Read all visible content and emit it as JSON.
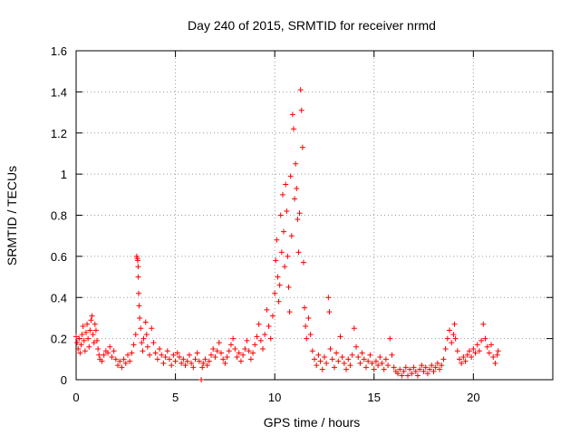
{
  "chart_data": {
    "type": "scatter",
    "title": "Day 240 of 2015, SRMTID for receiver nrmd",
    "xlabel": "GPS time / hours",
    "ylabel": "SRMTID / TECUs",
    "xlim": [
      0,
      24
    ],
    "ylim": [
      0,
      1.6
    ],
    "x_ticks": [
      0,
      5,
      10,
      15,
      20
    ],
    "x_tick_labels": [
      "0",
      "5",
      "10",
      "15",
      "20"
    ],
    "y_ticks": [
      0,
      0.2,
      0.4,
      0.6,
      0.8,
      1,
      1.2,
      1.4,
      1.6
    ],
    "y_tick_labels": [
      "0",
      "0.2",
      "0.4",
      "0.6",
      "0.8",
      "1",
      "1.2",
      "1.4",
      "1.6"
    ],
    "grid": true,
    "marker": "plus",
    "color": "#ff0000",
    "series": [
      {
        "name": "SRMTID",
        "points": [
          [
            0.0,
            0.21
          ],
          [
            0.05,
            0.18
          ],
          [
            0.1,
            0.15
          ],
          [
            0.15,
            0.2
          ],
          [
            0.2,
            0.13
          ],
          [
            0.25,
            0.17
          ],
          [
            0.3,
            0.22
          ],
          [
            0.35,
            0.26
          ],
          [
            0.4,
            0.19
          ],
          [
            0.45,
            0.14
          ],
          [
            0.5,
            0.23
          ],
          [
            0.55,
            0.27
          ],
          [
            0.6,
            0.2
          ],
          [
            0.65,
            0.16
          ],
          [
            0.7,
            0.24
          ],
          [
            0.75,
            0.29
          ],
          [
            0.8,
            0.31
          ],
          [
            0.85,
            0.22
          ],
          [
            0.9,
            0.18
          ],
          [
            0.95,
            0.27
          ],
          [
            1.0,
            0.24
          ],
          [
            1.05,
            0.19
          ],
          [
            1.1,
            0.15
          ],
          [
            1.15,
            0.12
          ],
          [
            1.2,
            0.1
          ],
          [
            1.3,
            0.09
          ],
          [
            1.4,
            0.12
          ],
          [
            1.5,
            0.14
          ],
          [
            1.6,
            0.13
          ],
          [
            1.7,
            0.16
          ],
          [
            1.8,
            0.11
          ],
          [
            1.9,
            0.14
          ],
          [
            2.0,
            0.1
          ],
          [
            2.1,
            0.07
          ],
          [
            2.2,
            0.09
          ],
          [
            2.3,
            0.06
          ],
          [
            2.4,
            0.1
          ],
          [
            2.5,
            0.08
          ],
          [
            2.6,
            0.12
          ],
          [
            2.7,
            0.09
          ],
          [
            2.8,
            0.13
          ],
          [
            2.9,
            0.17
          ],
          [
            3.0,
            0.22
          ],
          [
            3.05,
            0.6
          ],
          [
            3.08,
            0.59
          ],
          [
            3.1,
            0.58
          ],
          [
            3.12,
            0.55
          ],
          [
            3.13,
            0.5
          ],
          [
            3.15,
            0.42
          ],
          [
            3.17,
            0.36
          ],
          [
            3.2,
            0.3
          ],
          [
            3.25,
            0.25
          ],
          [
            3.3,
            0.18
          ],
          [
            3.35,
            0.14
          ],
          [
            3.4,
            0.2
          ],
          [
            3.5,
            0.28
          ],
          [
            3.55,
            0.22
          ],
          [
            3.6,
            0.16
          ],
          [
            3.7,
            0.12
          ],
          [
            3.8,
            0.25
          ],
          [
            3.9,
            0.18
          ],
          [
            4.0,
            0.13
          ],
          [
            4.1,
            0.1
          ],
          [
            4.2,
            0.15
          ],
          [
            4.3,
            0.12
          ],
          [
            4.4,
            0.08
          ],
          [
            4.5,
            0.11
          ],
          [
            4.6,
            0.14
          ],
          [
            4.7,
            0.1
          ],
          [
            4.8,
            0.07
          ],
          [
            4.9,
            0.12
          ],
          [
            5.0,
            0.09
          ],
          [
            5.1,
            0.13
          ],
          [
            5.2,
            0.11
          ],
          [
            5.3,
            0.08
          ],
          [
            5.4,
            0.1
          ],
          [
            5.5,
            0.07
          ],
          [
            5.6,
            0.09
          ],
          [
            5.7,
            0.12
          ],
          [
            5.8,
            0.08
          ],
          [
            5.9,
            0.06
          ],
          [
            6.0,
            0.1
          ],
          [
            6.1,
            0.13
          ],
          [
            6.2,
            0.09
          ],
          [
            6.3,
            0.0
          ],
          [
            6.35,
            0.06
          ],
          [
            6.4,
            0.08
          ],
          [
            6.5,
            0.1
          ],
          [
            6.6,
            0.07
          ],
          [
            6.7,
            0.09
          ],
          [
            6.8,
            0.12
          ],
          [
            6.9,
            0.15
          ],
          [
            7.0,
            0.11
          ],
          [
            7.1,
            0.14
          ],
          [
            7.2,
            0.18
          ],
          [
            7.3,
            0.13
          ],
          [
            7.4,
            0.1
          ],
          [
            7.5,
            0.08
          ],
          [
            7.6,
            0.11
          ],
          [
            7.7,
            0.14
          ],
          [
            7.8,
            0.17
          ],
          [
            7.9,
            0.2
          ],
          [
            8.0,
            0.15
          ],
          [
            8.1,
            0.11
          ],
          [
            8.2,
            0.13
          ],
          [
            8.3,
            0.09
          ],
          [
            8.4,
            0.12
          ],
          [
            8.5,
            0.15
          ],
          [
            8.6,
            0.19
          ],
          [
            8.7,
            0.14
          ],
          [
            8.8,
            0.1
          ],
          [
            8.9,
            0.13
          ],
          [
            9.0,
            0.17
          ],
          [
            9.1,
            0.21
          ],
          [
            9.2,
            0.27
          ],
          [
            9.3,
            0.19
          ],
          [
            9.4,
            0.15
          ],
          [
            9.5,
            0.22
          ],
          [
            9.6,
            0.34
          ],
          [
            9.7,
            0.26
          ],
          [
            9.8,
            0.2
          ],
          [
            9.9,
            0.31
          ],
          [
            10.0,
            0.42
          ],
          [
            10.05,
            0.58
          ],
          [
            10.1,
            0.68
          ],
          [
            10.15,
            0.5
          ],
          [
            10.2,
            0.38
          ],
          [
            10.25,
            0.46
          ],
          [
            10.3,
            0.8
          ],
          [
            10.35,
            0.62
          ],
          [
            10.4,
            0.9
          ],
          [
            10.45,
            0.72
          ],
          [
            10.5,
            0.55
          ],
          [
            10.55,
            0.95
          ],
          [
            10.6,
            0.82
          ],
          [
            10.65,
            0.6
          ],
          [
            10.7,
            0.45
          ],
          [
            10.75,
            0.33
          ],
          [
            10.8,
            0.99
          ],
          [
            10.85,
            0.7
          ],
          [
            10.9,
            1.29
          ],
          [
            10.95,
            1.22
          ],
          [
            11.0,
            0.88
          ],
          [
            11.05,
            1.05
          ],
          [
            11.1,
            0.93
          ],
          [
            11.15,
            0.78
          ],
          [
            11.2,
            0.62
          ],
          [
            11.25,
            0.81
          ],
          [
            11.3,
            1.41
          ],
          [
            11.35,
            1.31
          ],
          [
            11.4,
            1.13
          ],
          [
            11.45,
            0.57
          ],
          [
            11.5,
            0.35
          ],
          [
            11.55,
            0.26
          ],
          [
            11.6,
            0.2
          ],
          [
            11.7,
            0.3
          ],
          [
            11.8,
            0.22
          ],
          [
            11.9,
            0.14
          ],
          [
            12.0,
            0.1
          ],
          [
            12.1,
            0.07
          ],
          [
            12.2,
            0.12
          ],
          [
            12.3,
            0.09
          ],
          [
            12.4,
            0.05
          ],
          [
            12.5,
            0.11
          ],
          [
            12.6,
            0.08
          ],
          [
            12.7,
            0.4
          ],
          [
            12.75,
            0.33
          ],
          [
            12.8,
            0.15
          ],
          [
            12.9,
            0.1
          ],
          [
            13.0,
            0.06
          ],
          [
            13.1,
            0.13
          ],
          [
            13.2,
            0.09
          ],
          [
            13.3,
            0.21
          ],
          [
            13.4,
            0.11
          ],
          [
            13.5,
            0.08
          ],
          [
            13.6,
            0.05
          ],
          [
            13.7,
            0.1
          ],
          [
            13.8,
            0.07
          ],
          [
            13.9,
            0.12
          ],
          [
            14.0,
            0.25
          ],
          [
            14.1,
            0.16
          ],
          [
            14.2,
            0.11
          ],
          [
            14.3,
            0.08
          ],
          [
            14.4,
            0.13
          ],
          [
            14.5,
            0.1
          ],
          [
            14.6,
            0.06
          ],
          [
            14.7,
            0.09
          ],
          [
            14.8,
            0.12
          ],
          [
            14.9,
            0.08
          ],
          [
            15.0,
            0.05
          ],
          [
            15.1,
            0.09
          ],
          [
            15.2,
            0.07
          ],
          [
            15.3,
            0.11
          ],
          [
            15.4,
            0.08
          ],
          [
            15.5,
            0.05
          ],
          [
            15.6,
            0.1
          ],
          [
            15.7,
            0.07
          ],
          [
            15.8,
            0.2
          ],
          [
            15.9,
            0.12
          ],
          [
            16.0,
            0.06
          ],
          [
            16.1,
            0.04
          ],
          [
            16.2,
            0.03
          ],
          [
            16.3,
            0.05
          ],
          [
            16.4,
            0.02
          ],
          [
            16.5,
            0.04
          ],
          [
            16.6,
            0.06
          ],
          [
            16.7,
            0.02
          ],
          [
            16.8,
            0.05
          ],
          [
            16.9,
            0.03
          ],
          [
            17.0,
            0.06
          ],
          [
            17.1,
            0.04
          ],
          [
            17.2,
            0.02
          ],
          [
            17.3,
            0.05
          ],
          [
            17.4,
            0.07
          ],
          [
            17.5,
            0.04
          ],
          [
            17.6,
            0.06
          ],
          [
            17.7,
            0.03
          ],
          [
            17.8,
            0.05
          ],
          [
            17.9,
            0.07
          ],
          [
            18.0,
            0.04
          ],
          [
            18.1,
            0.06
          ],
          [
            18.2,
            0.08
          ],
          [
            18.3,
            0.05
          ],
          [
            18.4,
            0.07
          ],
          [
            18.5,
            0.1
          ],
          [
            18.6,
            0.15
          ],
          [
            18.7,
            0.2
          ],
          [
            18.8,
            0.24
          ],
          [
            18.9,
            0.18
          ],
          [
            19.0,
            0.22
          ],
          [
            19.05,
            0.27
          ],
          [
            19.1,
            0.2
          ],
          [
            19.2,
            0.14
          ],
          [
            19.3,
            0.1
          ],
          [
            19.4,
            0.08
          ],
          [
            19.5,
            0.11
          ],
          [
            19.6,
            0.09
          ],
          [
            19.7,
            0.12
          ],
          [
            19.8,
            0.14
          ],
          [
            19.9,
            0.11
          ],
          [
            20.0,
            0.15
          ],
          [
            20.1,
            0.13
          ],
          [
            20.2,
            0.17
          ],
          [
            20.3,
            0.14
          ],
          [
            20.4,
            0.19
          ],
          [
            20.5,
            0.27
          ],
          [
            20.6,
            0.2
          ],
          [
            20.7,
            0.16
          ],
          [
            20.8,
            0.13
          ],
          [
            20.9,
            0.17
          ],
          [
            21.0,
            0.11
          ],
          [
            21.1,
            0.08
          ],
          [
            21.2,
            0.12
          ],
          [
            21.25,
            0.14
          ]
        ]
      }
    ]
  }
}
